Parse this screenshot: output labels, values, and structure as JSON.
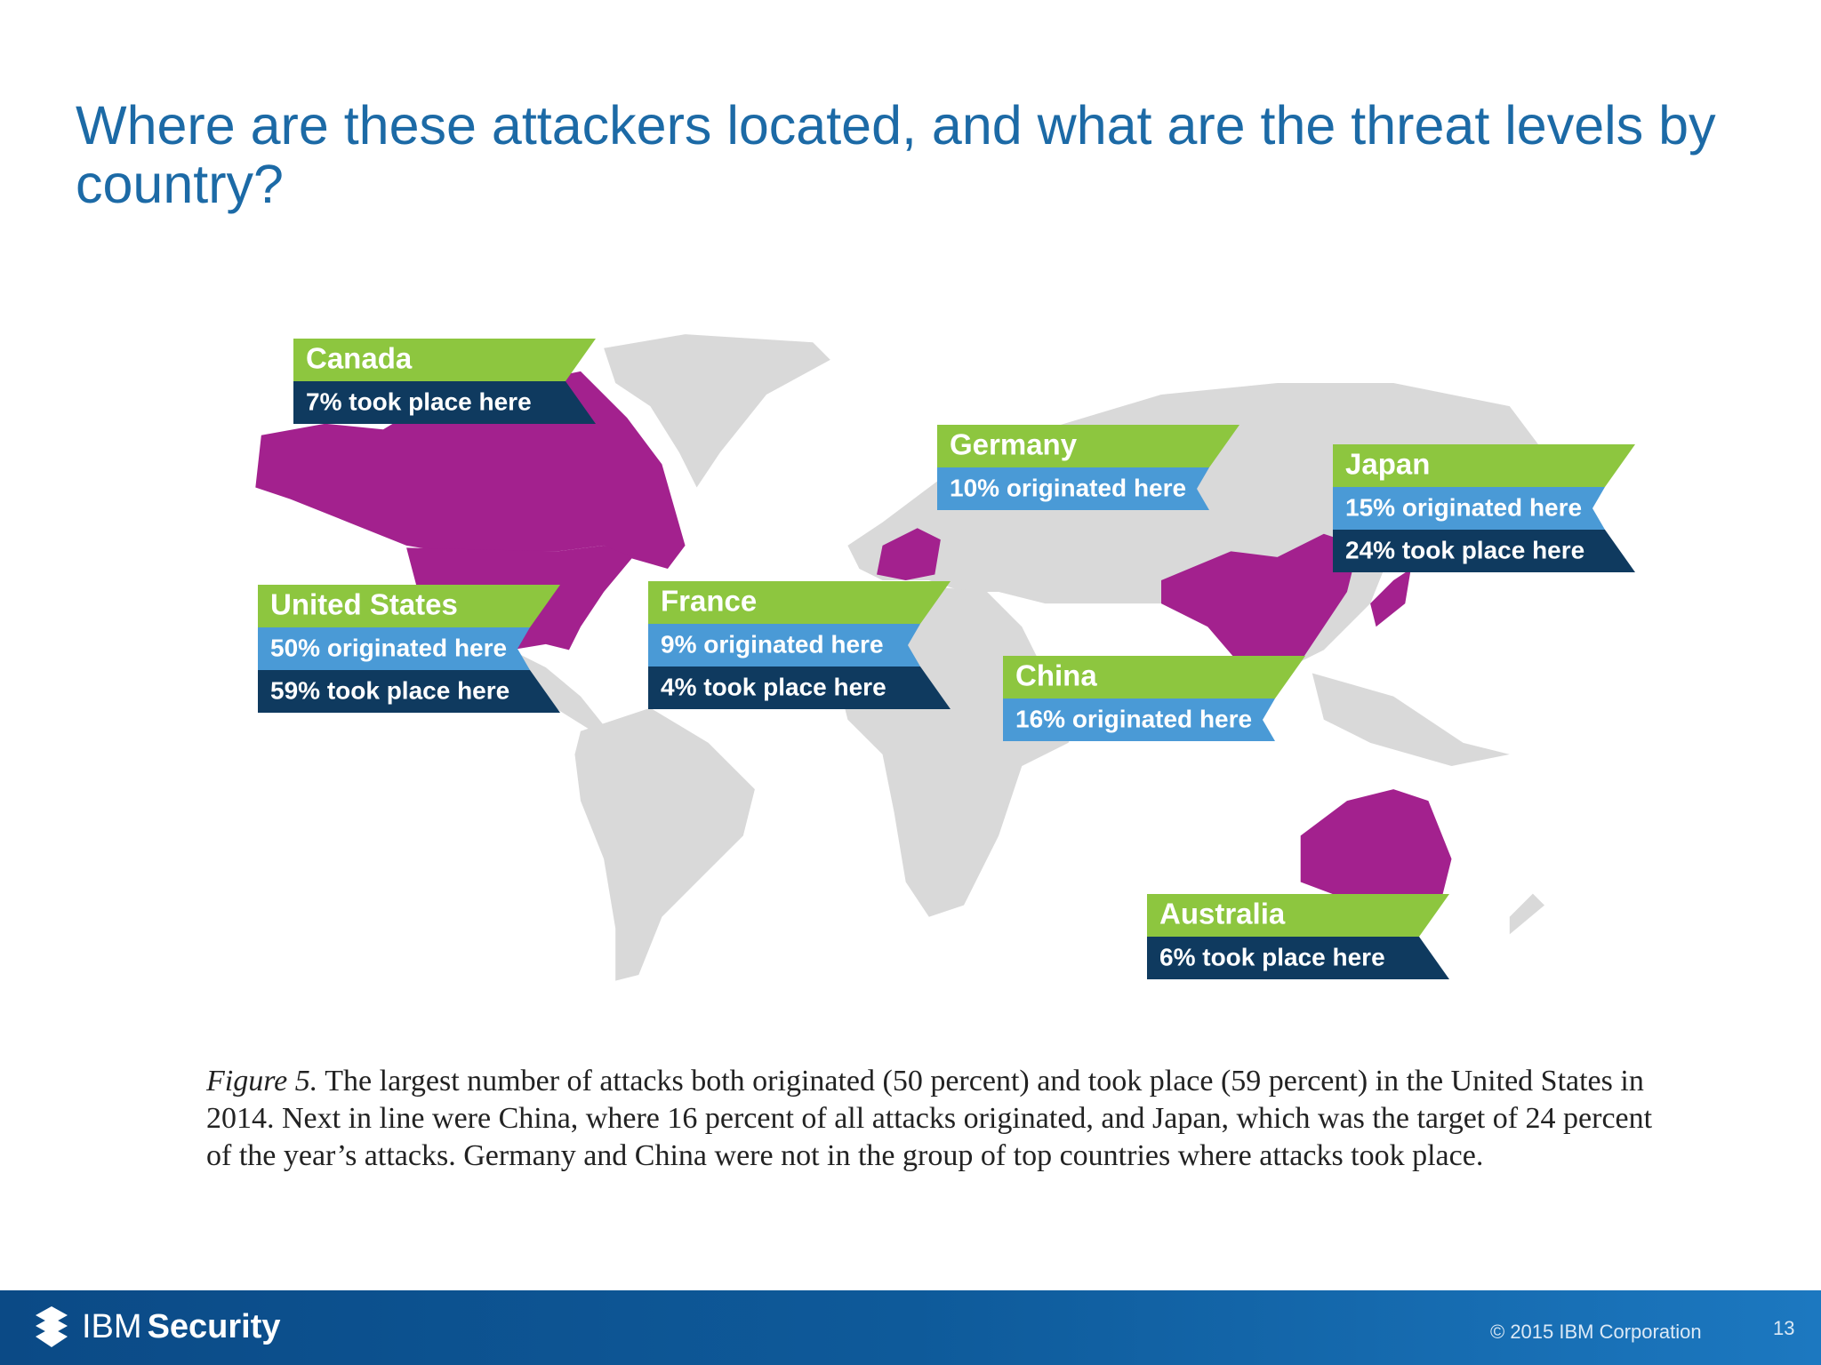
{
  "title": "Where are these attackers located, and what are the threat levels by country?",
  "map": {
    "labels": [
      {
        "country": "Canada",
        "took_place": "7% took place here"
      },
      {
        "country": "Germany",
        "originated": "10% originated here"
      },
      {
        "country": "Japan",
        "originated": "15% originated here",
        "took_place": "24% took place here"
      },
      {
        "country": "United States",
        "originated": "50% originated here",
        "took_place": "59% took place here"
      },
      {
        "country": "France",
        "originated": "9% originated here",
        "took_place": "4% took place here"
      },
      {
        "country": "China",
        "originated": "16% originated here"
      },
      {
        "country": "Australia",
        "took_place": "6% took place here"
      }
    ]
  },
  "caption": {
    "figure_label": "Figure 5.",
    "text": "The largest number of attacks both originated (50 percent) and took place (59 percent) in the United States in 2014. Next in line were China, where 16 percent of all attacks originated, and Japan, which was the target of 24 percent of the year’s attacks. Germany and China were not in the group of top countries where attacks took place."
  },
  "footer": {
    "brand_ibm": "IBM",
    "brand_security": "Security",
    "copyright": "© 2015 IBM Corporation",
    "page": "13"
  }
}
